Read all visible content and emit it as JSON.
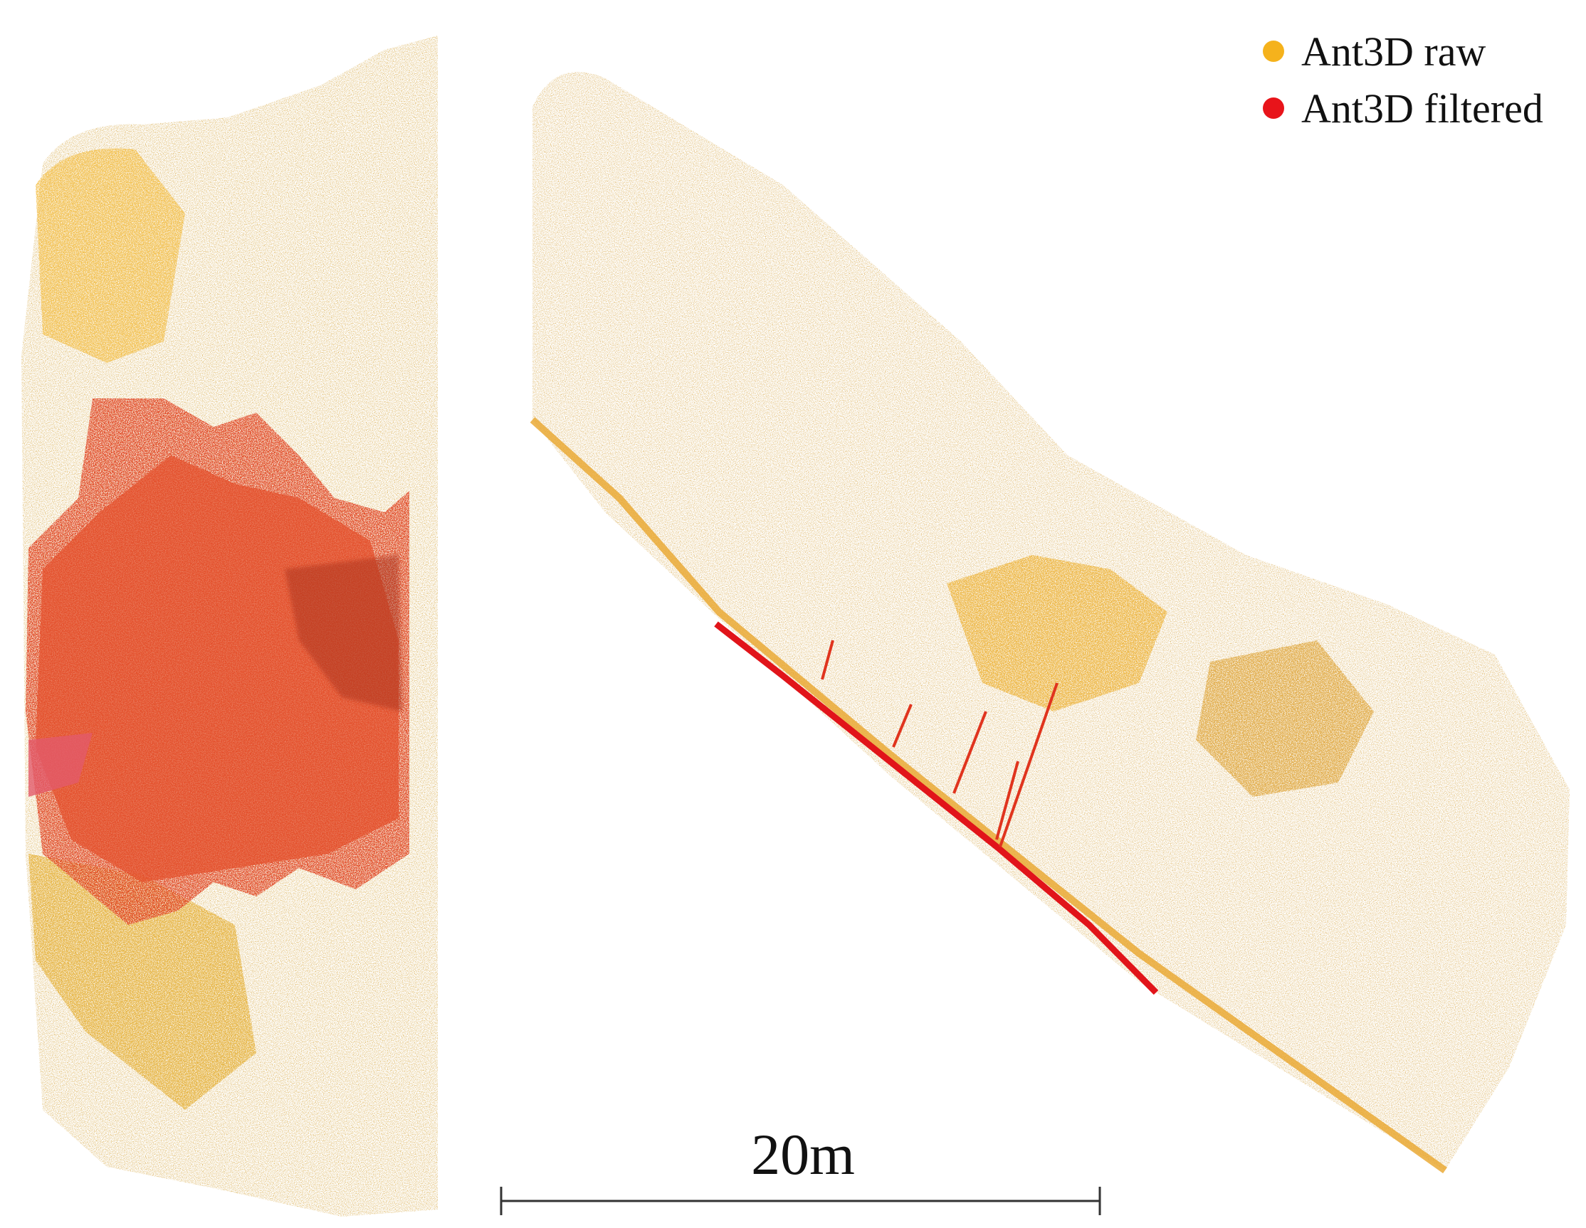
{
  "legend": {
    "items": [
      {
        "label": "Ant3D raw",
        "color": "#f5b21c"
      },
      {
        "label": "Ant3D filtered",
        "color": "#e8141a"
      }
    ]
  },
  "scale_bar": {
    "label": "20m"
  }
}
